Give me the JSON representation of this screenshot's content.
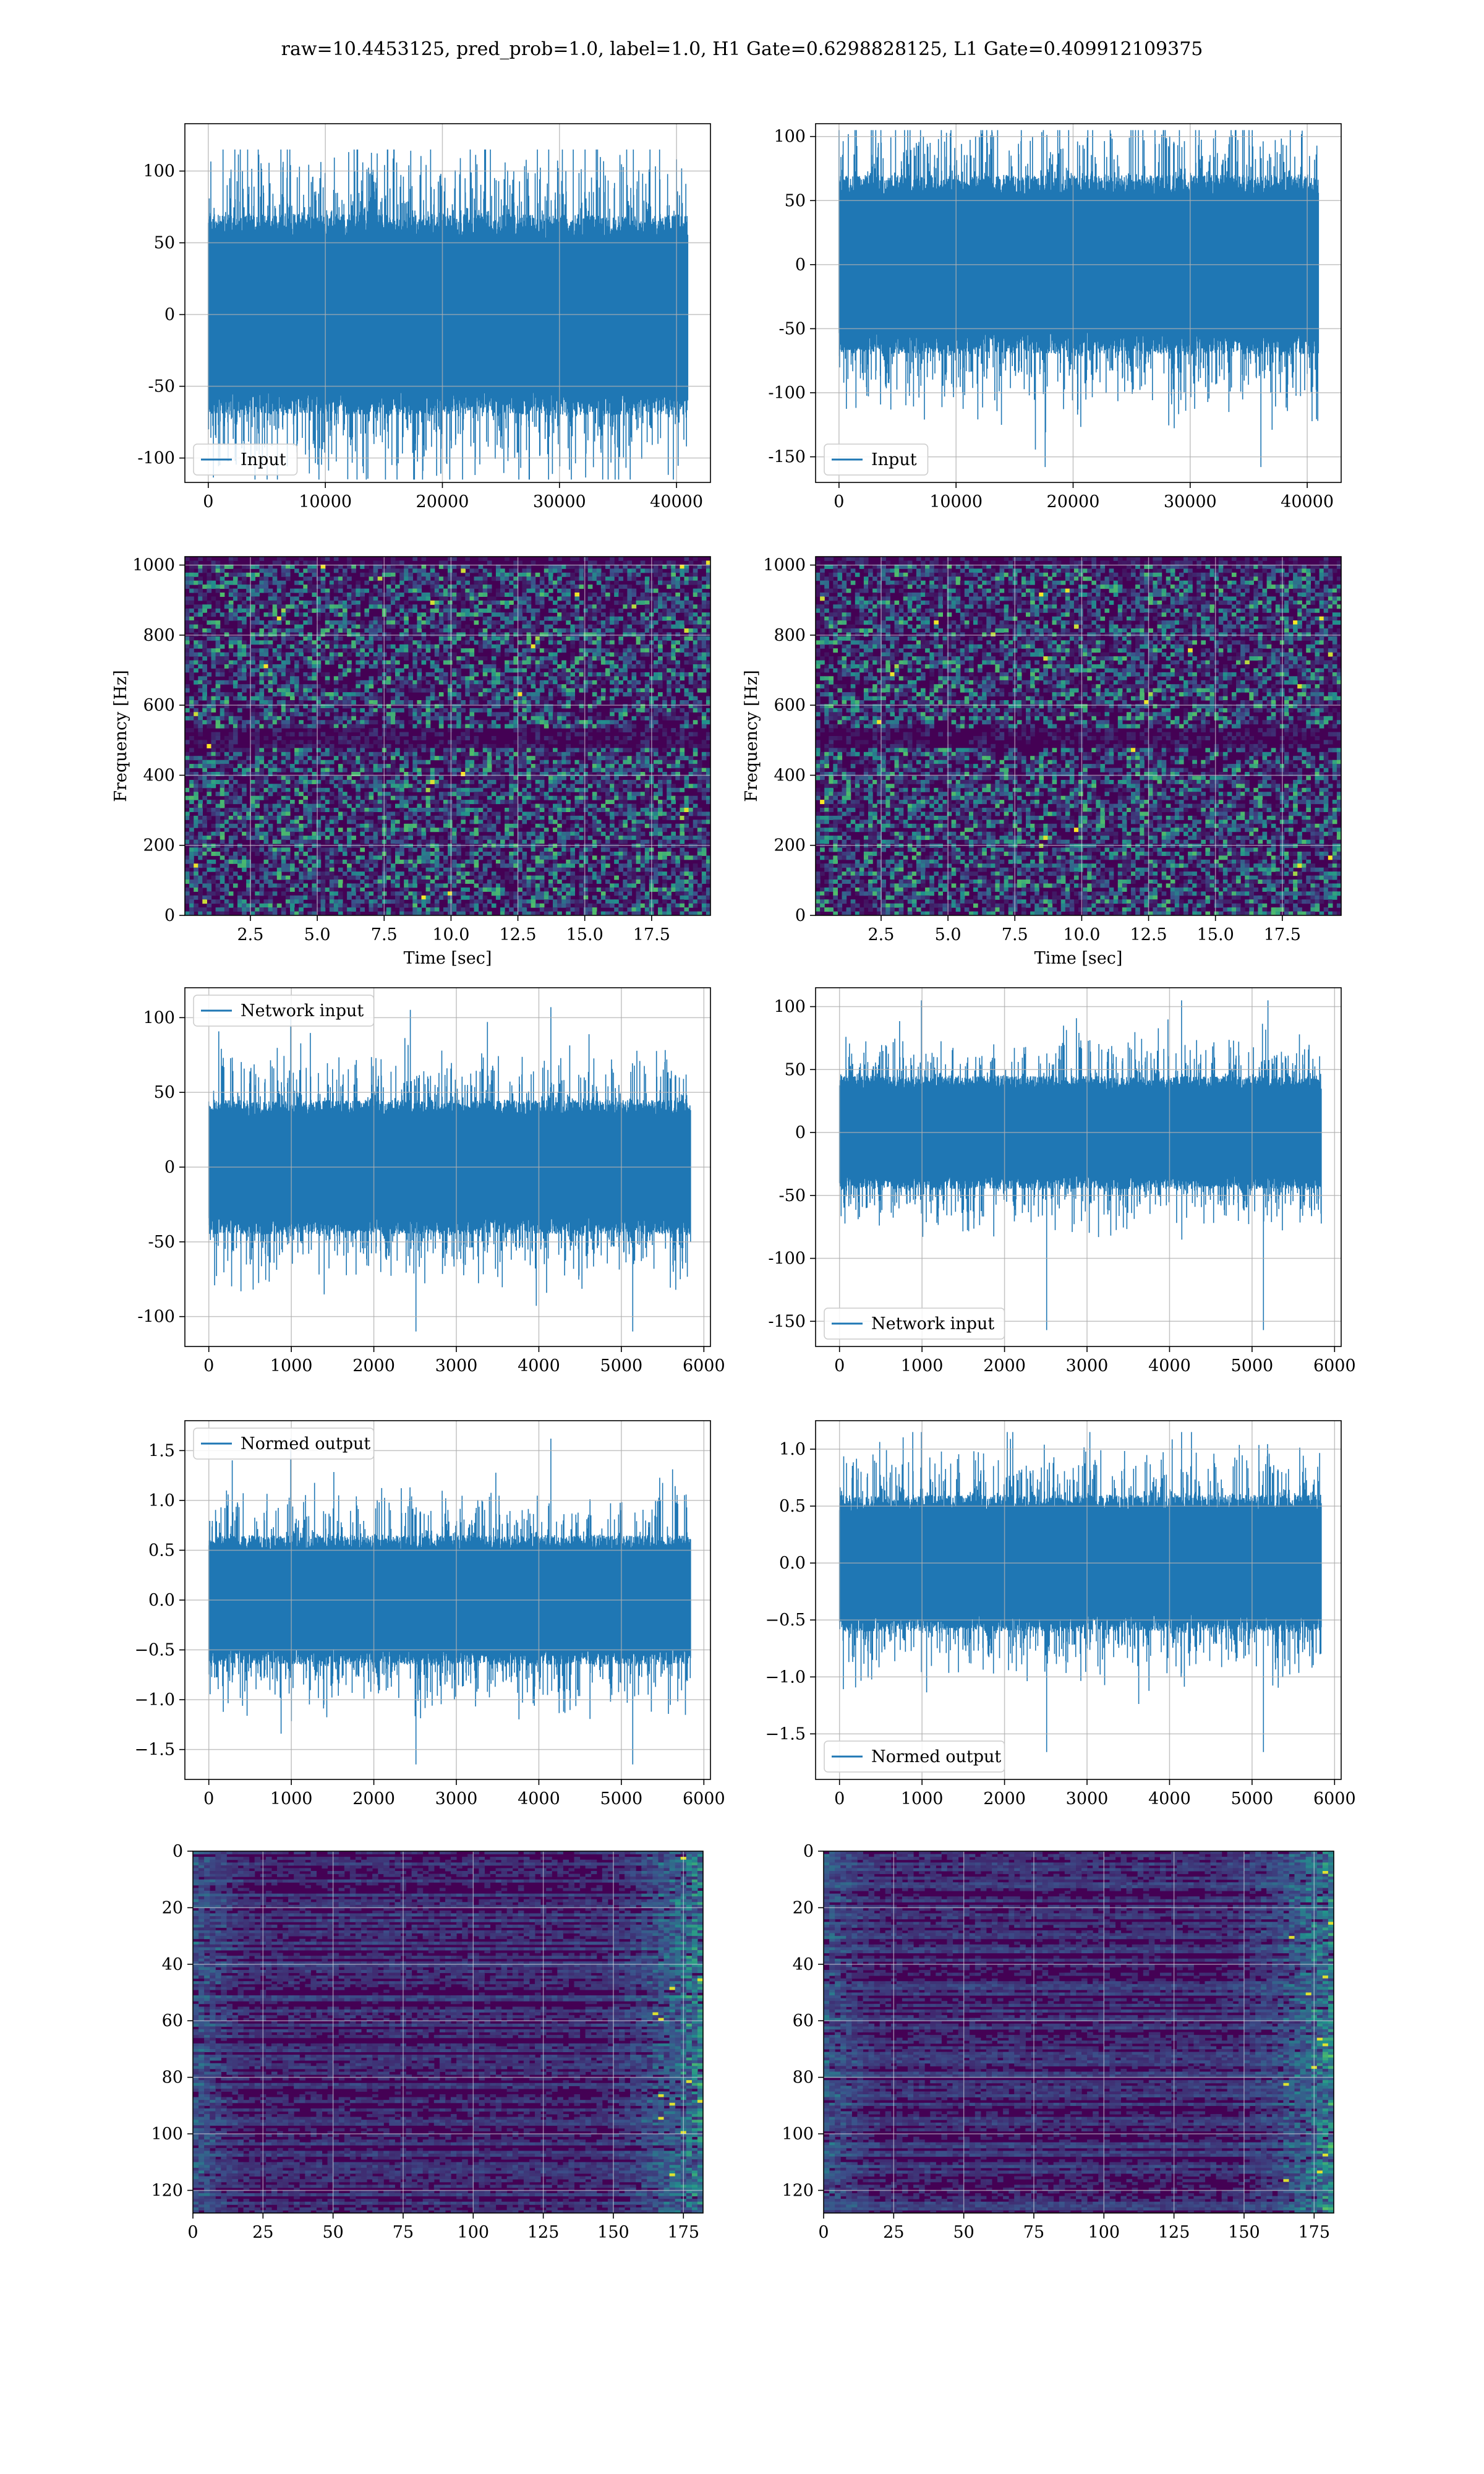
{
  "figure": {
    "suptitle": "raw=10.4453125, pred_prob=1.0, label=1.0, H1 Gate=0.6298828125, L1 Gate=0.409912109375"
  },
  "colors": {
    "line": "#1f77b4",
    "viridis_low": "#440154",
    "viridis_mid": "#21918c",
    "viridis_high": "#fde725",
    "grid": "#b0b0b0"
  },
  "chart_data": [
    {
      "id": "h1-input",
      "type": "line",
      "xlabel": "",
      "ylabel": "",
      "xlim": [
        -2000,
        42900
      ],
      "ylim": [
        -117,
        133
      ],
      "xticks": [
        0,
        10000,
        20000,
        30000,
        40000
      ],
      "yticks": [
        -100,
        -50,
        0,
        50,
        100
      ],
      "legend": "lower-left",
      "grid": true,
      "series": [
        {
          "name": "Input",
          "x_range": [
            0,
            40959
          ],
          "envelope": [
            -115,
            115
          ],
          "core": [
            -70,
            70
          ]
        }
      ]
    },
    {
      "id": "l1-input",
      "type": "line",
      "xlabel": "",
      "ylabel": "",
      "xlim": [
        -2000,
        42900
      ],
      "ylim": [
        -170,
        110
      ],
      "xticks": [
        0,
        10000,
        20000,
        30000,
        40000
      ],
      "yticks": [
        -150,
        -100,
        -50,
        0,
        50,
        100
      ],
      "legend": "lower-left",
      "grid": true,
      "series": [
        {
          "name": "Input",
          "x_range": [
            0,
            40959
          ],
          "envelope": [
            -158,
            105
          ],
          "core": [
            -70,
            70
          ]
        }
      ]
    },
    {
      "id": "h1-spectrogram",
      "type": "heatmap",
      "xlabel": "Time [sec]",
      "ylabel": "Frequency [Hz]",
      "xlim": [
        0.05,
        19.7
      ],
      "ylim": [
        0,
        1024
      ],
      "xticks": [
        2.5,
        5.0,
        7.5,
        10.0,
        12.5,
        15.0,
        17.5
      ],
      "yticks": [
        0,
        200,
        400,
        600,
        800,
        1000
      ],
      "grid": true
    },
    {
      "id": "l1-spectrogram",
      "type": "heatmap",
      "xlabel": "Time [sec]",
      "ylabel": "Frequency [Hz]",
      "xlim": [
        0.05,
        19.7
      ],
      "ylim": [
        0,
        1024
      ],
      "xticks": [
        2.5,
        5.0,
        7.5,
        10.0,
        12.5,
        15.0,
        17.5
      ],
      "yticks": [
        0,
        200,
        400,
        600,
        800,
        1000
      ],
      "grid": true
    },
    {
      "id": "h1-network-input",
      "type": "line",
      "xlabel": "",
      "ylabel": "",
      "xlim": [
        -290,
        6080
      ],
      "ylim": [
        -120,
        120
      ],
      "xticks": [
        0,
        1000,
        2000,
        3000,
        4000,
        5000,
        6000
      ],
      "yticks": [
        -100,
        -50,
        0,
        50,
        100
      ],
      "legend": "top-left",
      "grid": true,
      "series": [
        {
          "name": "Network input",
          "x_range": [
            0,
            5839
          ],
          "envelope": [
            -110,
            107
          ],
          "core": [
            -45,
            45
          ]
        }
      ]
    },
    {
      "id": "l1-network-input",
      "type": "line",
      "xlabel": "",
      "ylabel": "",
      "xlim": [
        -290,
        6080
      ],
      "ylim": [
        -170,
        115
      ],
      "xticks": [
        0,
        1000,
        2000,
        3000,
        4000,
        5000,
        6000
      ],
      "yticks": [
        -150,
        -100,
        -50,
        0,
        50,
        100
      ],
      "legend": "lower-left",
      "grid": true,
      "series": [
        {
          "name": "Network input",
          "x_range": [
            0,
            5839
          ],
          "envelope": [
            -157,
            105
          ],
          "core": [
            -45,
            45
          ]
        }
      ]
    },
    {
      "id": "h1-normed-output",
      "type": "line",
      "xlabel": "",
      "ylabel": "",
      "xlim": [
        -290,
        6080
      ],
      "ylim": [
        -1.8,
        1.8
      ],
      "xticks": [
        0,
        1000,
        2000,
        3000,
        4000,
        5000,
        6000
      ],
      "yticks": [
        -1.5,
        -1.0,
        -0.5,
        0.0,
        0.5,
        1.0,
        1.5
      ],
      "legend": "top-left",
      "grid": true,
      "series": [
        {
          "name": "Normed output",
          "x_range": [
            0,
            5839
          ],
          "envelope": [
            -1.65,
            1.62
          ],
          "core": [
            -0.65,
            0.65
          ]
        }
      ]
    },
    {
      "id": "l1-normed-output",
      "type": "line",
      "xlabel": "",
      "ylabel": "",
      "xlim": [
        -290,
        6080
      ],
      "ylim": [
        -1.9,
        1.25
      ],
      "xticks": [
        0,
        1000,
        2000,
        3000,
        4000,
        5000,
        6000
      ],
      "yticks": [
        -1.5,
        -1.0,
        -0.5,
        0.0,
        0.5,
        1.0
      ],
      "legend": "lower-left",
      "grid": true,
      "series": [
        {
          "name": "Normed output",
          "x_range": [
            0,
            5839
          ],
          "envelope": [
            -1.66,
            1.15
          ],
          "core": [
            -0.6,
            0.6
          ]
        }
      ]
    },
    {
      "id": "h1-feature-map",
      "type": "heatmap",
      "xlabel": "",
      "ylabel": "",
      "xlim": [
        0,
        182
      ],
      "ylim": [
        128,
        0
      ],
      "y_inverted": true,
      "xticks": [
        0,
        25,
        50,
        75,
        100,
        125,
        150,
        175
      ],
      "yticks": [
        0,
        20,
        40,
        60,
        80,
        100,
        120
      ],
      "grid": true
    },
    {
      "id": "l1-feature-map",
      "type": "heatmap",
      "xlabel": "",
      "ylabel": "",
      "xlim": [
        0,
        182
      ],
      "ylim": [
        128,
        0
      ],
      "y_inverted": true,
      "xticks": [
        0,
        25,
        50,
        75,
        100,
        125,
        150,
        175
      ],
      "yticks": [
        0,
        20,
        40,
        60,
        80,
        100,
        120
      ],
      "grid": true
    }
  ]
}
